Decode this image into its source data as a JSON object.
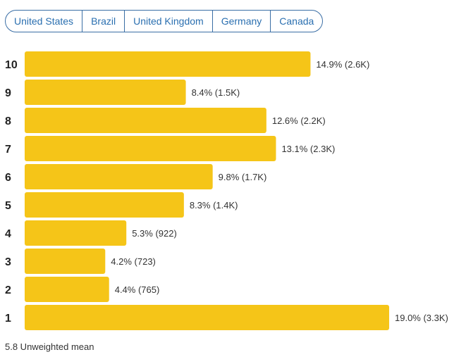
{
  "tabs": [
    "United States",
    "Brazil",
    "United Kingdom",
    "Germany",
    "Canada"
  ],
  "colors": {
    "bar": "#f5c518",
    "tab_border": "#3a6ea5",
    "tab_text": "#2a6fb0",
    "text": "#333333"
  },
  "chart_data": {
    "type": "bar",
    "orientation": "horizontal",
    "categories": [
      "10",
      "9",
      "8",
      "7",
      "6",
      "5",
      "4",
      "3",
      "2",
      "1"
    ],
    "values": [
      14.9,
      8.4,
      12.6,
      13.1,
      9.8,
      8.3,
      5.3,
      4.2,
      4.4,
      19.0
    ],
    "labels": [
      "14.9% (2.6K)",
      "8.4% (1.5K)",
      "12.6% (2.2K)",
      "13.1% (2.3K)",
      "9.8% (1.7K)",
      "8.3% (1.4K)",
      "5.3% (922)",
      "4.2% (723)",
      "4.4% (765)",
      "19.0% (3.3K)"
    ],
    "xlim": [
      0,
      19.0
    ],
    "title": "",
    "xlabel": "",
    "ylabel": "",
    "grid": false,
    "legend": "none"
  },
  "footer": "5.8 Unweighted mean"
}
